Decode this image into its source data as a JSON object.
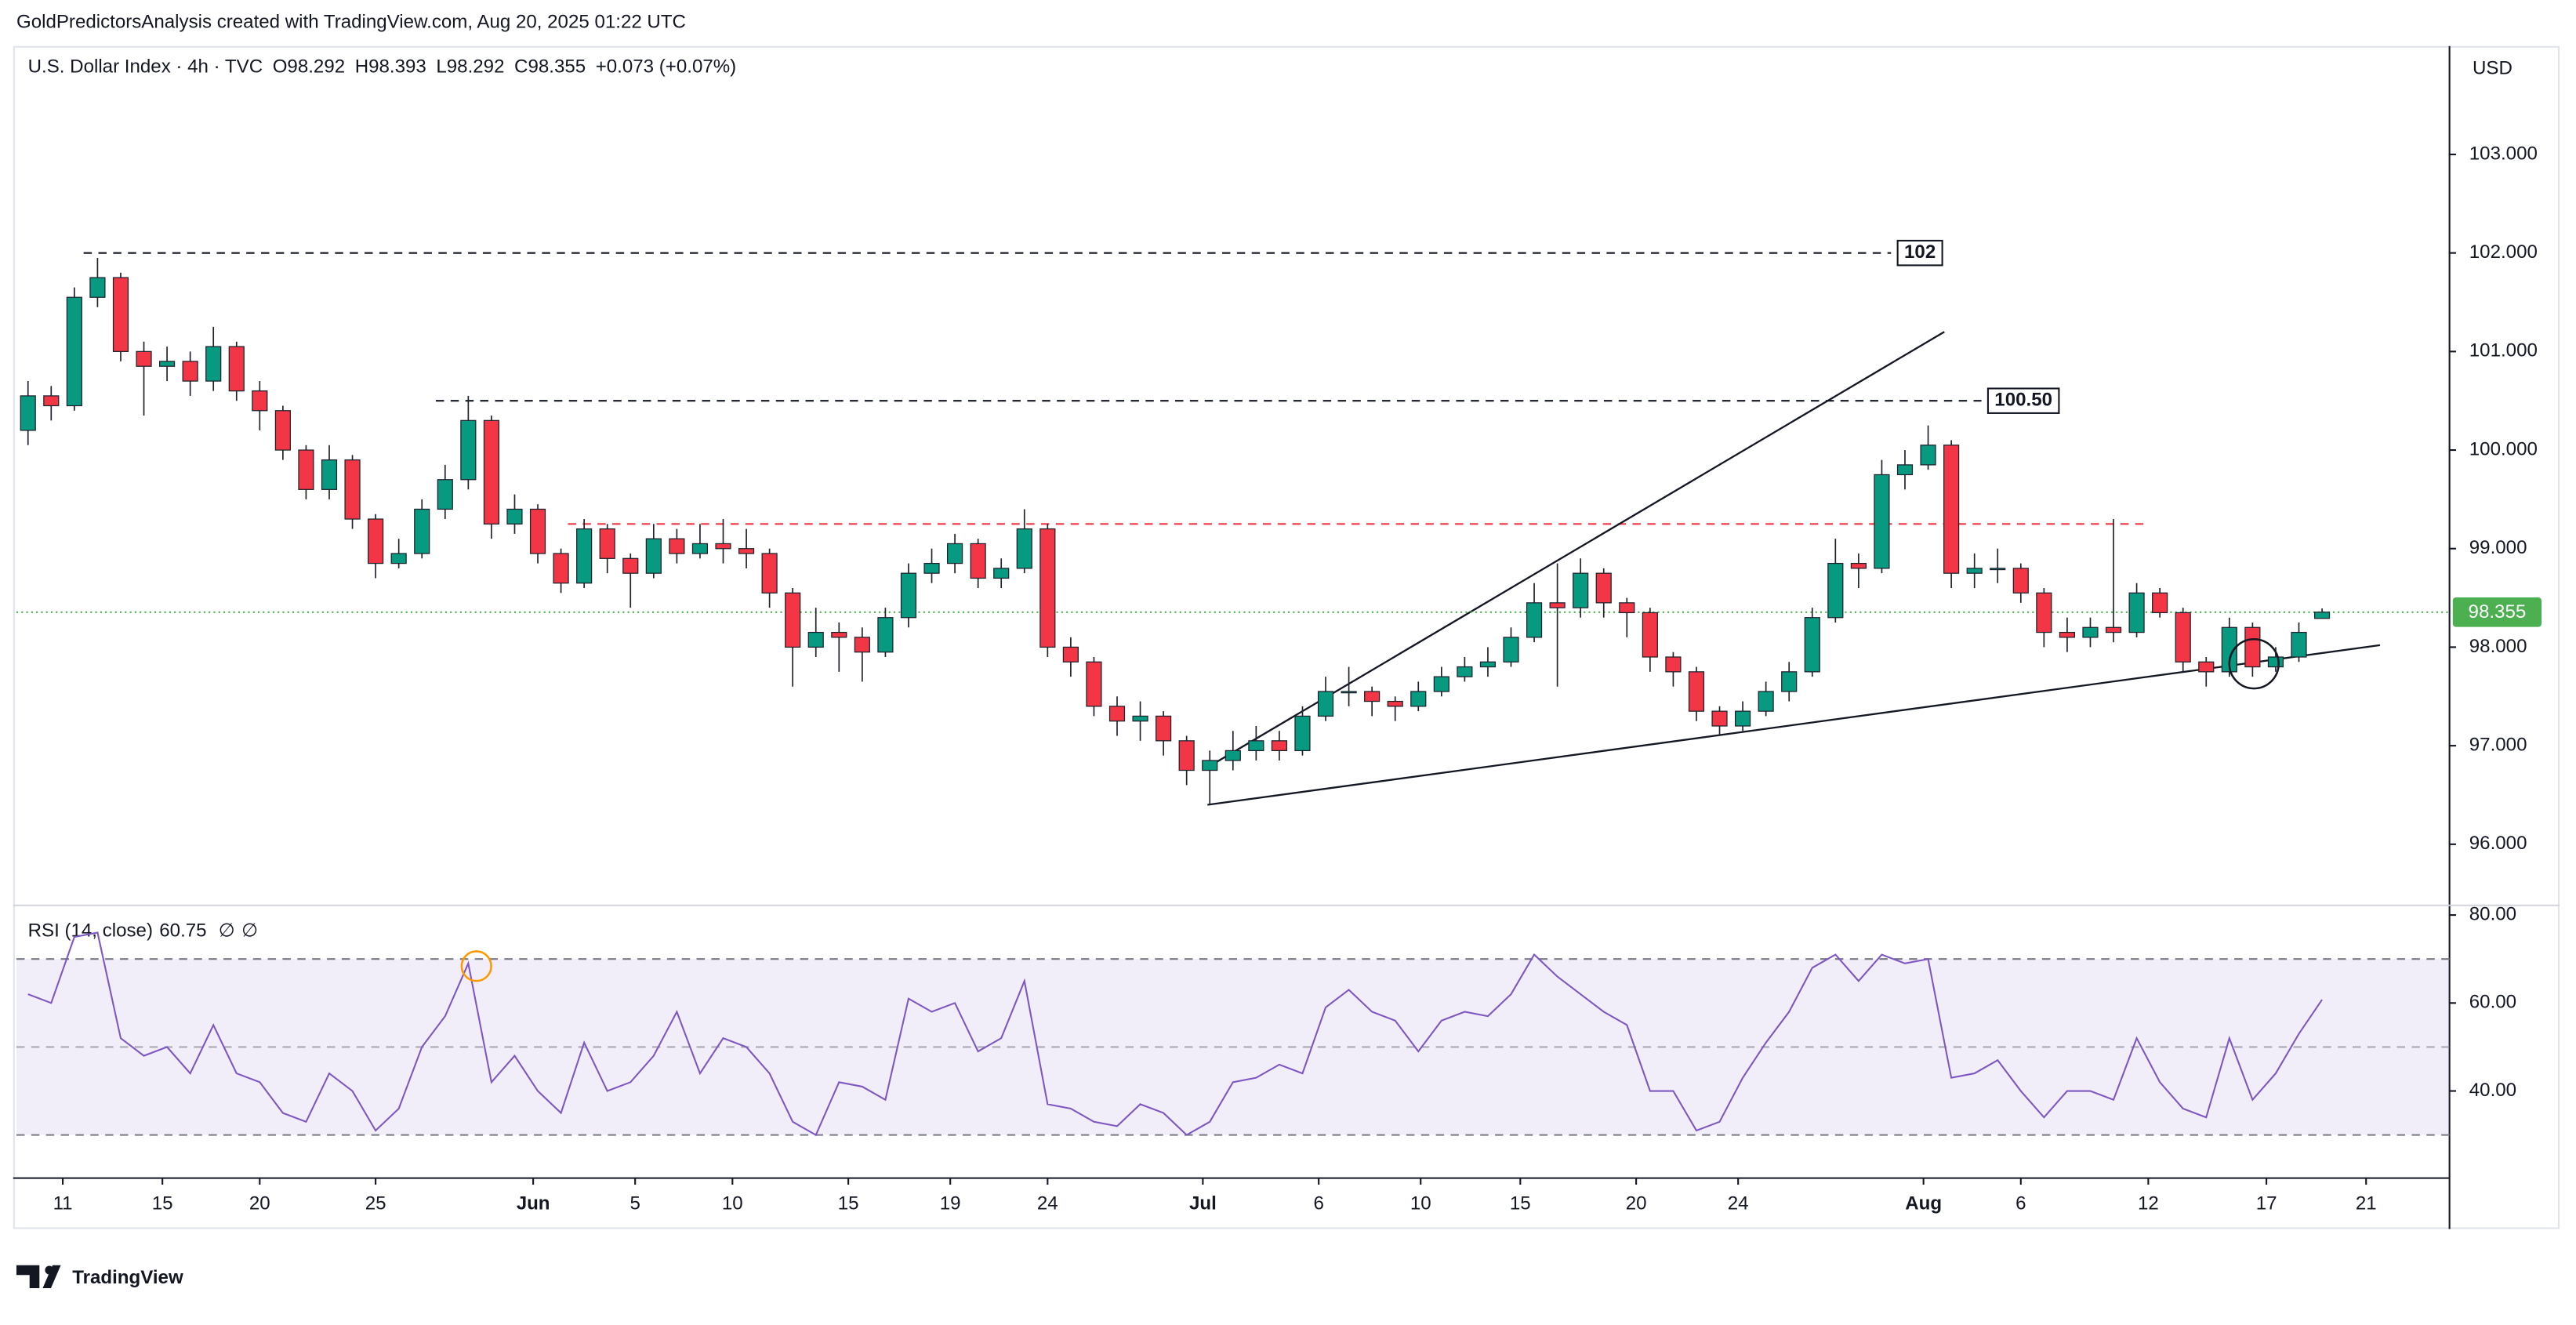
{
  "header": "GoldPredictorsAnalysis created with TradingView.com, Aug 20, 2025 01:22 UTC",
  "logo": "TradingView",
  "chart_data": {
    "type": "candlestick",
    "title": "U.S. Dollar Index · 4h · TVC",
    "currency": "USD",
    "ohlc_legend": [
      "O98.292",
      "H98.393",
      "L98.292",
      "C98.355",
      "+0.073 (+0.07%)"
    ],
    "up_color": "#089981",
    "down_color": "#f23645",
    "border_color": "#1e222d",
    "open": [
      100.2,
      100.55,
      100.45,
      101.55,
      101.75,
      101.0,
      100.85,
      100.9,
      100.7,
      101.05,
      100.6,
      100.4,
      100.0,
      99.6,
      99.9,
      99.3,
      98.85,
      98.95,
      99.4,
      99.7,
      100.3,
      99.25,
      99.4,
      98.95,
      98.65,
      99.2,
      98.9,
      98.75,
      99.1,
      98.95,
      99.05,
      99.0,
      98.95,
      98.55,
      98.0,
      98.15,
      98.1,
      97.95,
      98.3,
      98.75,
      98.85,
      99.05,
      98.7,
      98.8,
      99.2,
      98.0,
      97.85,
      97.4,
      97.25,
      97.3,
      97.05,
      96.75,
      96.85,
      96.95,
      97.05,
      96.95,
      97.3,
      97.55,
      97.55,
      97.45,
      97.4,
      97.55,
      97.7,
      97.8,
      97.85,
      98.1,
      98.45,
      98.4,
      98.75,
      98.45,
      98.35,
      97.9,
      97.75,
      97.35,
      97.2,
      97.35,
      97.55,
      97.75,
      98.3,
      98.85,
      98.8,
      99.75,
      99.85,
      100.05,
      98.75,
      98.8,
      98.8,
      98.55,
      98.15,
      98.1,
      98.2,
      98.15,
      98.55,
      98.35,
      97.85,
      97.75,
      98.2,
      97.8,
      97.9,
      98.292
    ],
    "high": [
      100.7,
      100.65,
      101.65,
      101.95,
      101.8,
      101.1,
      101.05,
      101.0,
      101.25,
      101.1,
      100.7,
      100.45,
      100.05,
      100.05,
      99.95,
      99.35,
      99.1,
      99.5,
      99.85,
      100.55,
      100.35,
      99.55,
      99.45,
      99.0,
      99.3,
      99.25,
      98.95,
      99.25,
      99.2,
      99.25,
      99.3,
      99.2,
      99.0,
      98.6,
      98.4,
      98.25,
      98.2,
      98.4,
      98.85,
      99.0,
      99.15,
      99.1,
      98.9,
      99.4,
      99.25,
      98.1,
      97.9,
      97.5,
      97.45,
      97.35,
      97.1,
      96.95,
      97.15,
      97.2,
      97.15,
      97.4,
      97.7,
      97.8,
      97.6,
      97.5,
      97.65,
      97.8,
      97.9,
      98.0,
      98.2,
      98.65,
      98.85,
      98.9,
      98.8,
      98.5,
      98.4,
      97.95,
      97.8,
      97.4,
      97.45,
      97.65,
      97.85,
      98.4,
      99.1,
      98.95,
      99.9,
      100.0,
      100.25,
      100.1,
      98.95,
      99.0,
      98.85,
      98.6,
      98.3,
      98.3,
      99.3,
      98.65,
      98.6,
      98.4,
      97.9,
      98.3,
      98.25,
      98.0,
      98.25,
      98.393
    ],
    "low": [
      100.05,
      100.3,
      100.4,
      101.45,
      100.9,
      100.35,
      100.7,
      100.55,
      100.6,
      100.5,
      100.2,
      99.9,
      99.5,
      99.5,
      99.2,
      98.7,
      98.8,
      98.9,
      99.3,
      99.6,
      99.1,
      99.15,
      98.85,
      98.55,
      98.6,
      98.75,
      98.4,
      98.7,
      98.85,
      98.9,
      98.85,
      98.8,
      98.4,
      97.6,
      97.9,
      97.75,
      97.65,
      97.9,
      98.2,
      98.65,
      98.75,
      98.6,
      98.6,
      98.75,
      97.9,
      97.7,
      97.3,
      97.1,
      97.05,
      96.9,
      96.6,
      96.4,
      96.75,
      96.85,
      96.85,
      96.9,
      97.25,
      97.4,
      97.3,
      97.25,
      97.35,
      97.5,
      97.65,
      97.7,
      97.8,
      98.05,
      97.6,
      98.3,
      98.3,
      98.1,
      97.75,
      97.6,
      97.25,
      97.1,
      97.15,
      97.3,
      97.45,
      97.7,
      98.25,
      98.6,
      98.75,
      99.6,
      99.8,
      98.6,
      98.6,
      98.65,
      98.45,
      98.0,
      97.95,
      98.0,
      98.05,
      98.1,
      98.3,
      97.75,
      97.6,
      97.7,
      97.7,
      97.75,
      97.85,
      98.292
    ],
    "close": [
      100.55,
      100.45,
      101.55,
      101.75,
      101.0,
      100.85,
      100.9,
      100.7,
      101.05,
      100.6,
      100.4,
      100.0,
      99.6,
      99.9,
      99.3,
      98.85,
      98.95,
      99.4,
      99.7,
      100.3,
      99.25,
      99.4,
      98.95,
      98.65,
      99.2,
      98.9,
      98.75,
      99.1,
      98.95,
      99.05,
      99.0,
      98.95,
      98.55,
      98.0,
      98.15,
      98.1,
      97.95,
      98.3,
      98.75,
      98.85,
      99.05,
      98.7,
      98.8,
      99.2,
      98.0,
      97.85,
      97.4,
      97.25,
      97.3,
      97.05,
      96.75,
      96.85,
      96.95,
      97.05,
      96.95,
      97.3,
      97.55,
      97.55,
      97.45,
      97.4,
      97.55,
      97.7,
      97.8,
      97.85,
      98.1,
      98.45,
      98.4,
      98.75,
      98.45,
      98.35,
      97.9,
      97.75,
      97.35,
      97.2,
      97.35,
      97.55,
      97.75,
      98.3,
      98.85,
      98.8,
      99.75,
      99.85,
      100.05,
      98.75,
      98.8,
      98.8,
      98.55,
      98.15,
      98.1,
      98.2,
      98.15,
      98.55,
      98.35,
      97.85,
      97.75,
      98.2,
      97.8,
      97.9,
      98.15,
      98.355
    ],
    "xlim": [
      -0.5,
      104.5
    ],
    "xticks": [
      {
        "value": 1.5,
        "label": "11"
      },
      {
        "value": 5.8,
        "label": "15"
      },
      {
        "value": 10.0,
        "label": "20"
      },
      {
        "value": 15.0,
        "label": "25"
      },
      {
        "value": 21.8,
        "label": "Jun"
      },
      {
        "value": 26.2,
        "label": "5"
      },
      {
        "value": 30.4,
        "label": "10"
      },
      {
        "value": 35.4,
        "label": "15"
      },
      {
        "value": 39.8,
        "label": "19"
      },
      {
        "value": 44.0,
        "label": "24"
      },
      {
        "value": 50.7,
        "label": "Jul"
      },
      {
        "value": 55.7,
        "label": "6"
      },
      {
        "value": 60.1,
        "label": "10"
      },
      {
        "value": 64.4,
        "label": "15"
      },
      {
        "value": 69.4,
        "label": "20"
      },
      {
        "value": 73.8,
        "label": "24"
      },
      {
        "value": 81.8,
        "label": "Aug"
      },
      {
        "value": 86.0,
        "label": "6"
      },
      {
        "value": 91.5,
        "label": "12"
      },
      {
        "value": 96.6,
        "label": "17"
      },
      {
        "value": 100.9,
        "label": "21"
      }
    ],
    "ylim": [
      95.38,
      104.1
    ],
    "yticks": [
      {
        "value": 103,
        "label": "103.000"
      },
      {
        "value": 102,
        "label": "102.000"
      },
      {
        "value": 101,
        "label": "101.000"
      },
      {
        "value": 100,
        "label": "100.000"
      },
      {
        "value": 99,
        "label": "99.000"
      },
      {
        "value": 98,
        "label": "98.000"
      },
      {
        "value": 97,
        "label": "97.000"
      },
      {
        "value": 96,
        "label": "96.000"
      }
    ],
    "last_price": 98.355,
    "last_price_color": "#4caf50",
    "levels": [
      {
        "value": 102,
        "label": "102",
        "from": 2.4,
        "to": 80.4,
        "color": "#131722"
      },
      {
        "value": 100.5,
        "label": "100.50",
        "from": 17.6,
        "to": 84.3,
        "color": "#131722"
      },
      {
        "value": 99.25,
        "from": 23.3,
        "to": 91.3,
        "color": "#f23645"
      }
    ],
    "trendlines": [
      {
        "x": [
          50.9,
          82.7
        ],
        "y": [
          96.78,
          101.2
        ]
      },
      {
        "x": [
          50.9,
          101.5
        ],
        "y": [
          96.4,
          98.02
        ]
      }
    ],
    "rsi": {
      "title": "RSI (14, close)",
      "value": 60.75,
      "flags": [
        "∅",
        "∅"
      ],
      "color": "#7e57c2",
      "values": [
        62,
        60,
        75,
        76,
        52,
        48,
        50,
        44,
        55,
        44,
        42,
        35,
        33,
        44,
        40,
        31,
        36,
        50,
        57,
        69,
        42,
        48,
        40,
        35,
        51,
        40,
        42,
        48,
        58,
        44,
        52,
        50,
        44,
        33,
        30,
        42,
        41,
        38,
        61,
        58,
        60,
        49,
        52,
        65,
        37,
        36,
        33,
        32,
        37,
        35,
        30,
        33,
        42,
        43,
        46,
        44,
        59,
        63,
        58,
        56,
        49,
        56,
        58,
        57,
        62,
        71,
        66,
        62,
        58,
        55,
        40,
        40,
        31,
        33,
        43,
        51,
        58,
        68,
        71,
        65,
        71,
        69,
        70,
        43,
        44,
        47,
        40,
        34,
        40,
        40,
        38,
        52,
        42,
        36,
        34,
        52,
        38,
        44,
        53,
        60.75
      ],
      "ylim": [
        20.2,
        82.2
      ],
      "yticks": [
        {
          "value": 80,
          "label": "80.00"
        },
        {
          "value": 60,
          "label": "60.00"
        },
        {
          "value": 40,
          "label": "40.00"
        }
      ],
      "bands": [
        30,
        70
      ],
      "midline": 50
    }
  }
}
